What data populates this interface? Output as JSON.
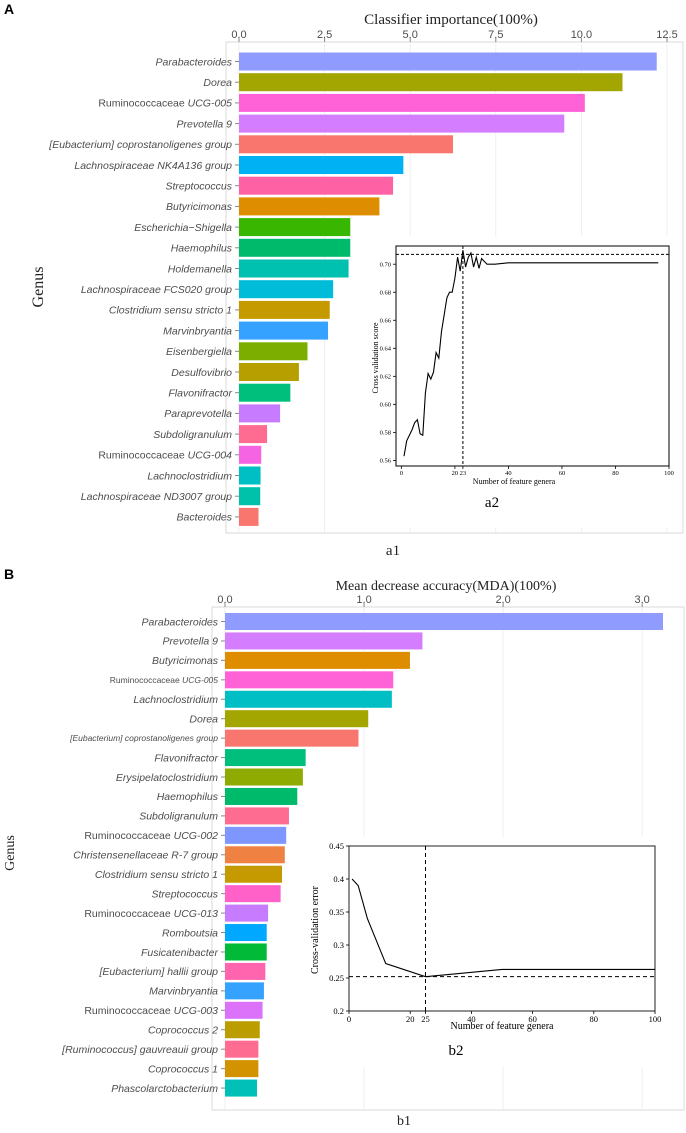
{
  "panels": [
    {
      "letter": "A",
      "caption": "a1",
      "chart_data": {
        "type": "bar",
        "orientation": "horizontal",
        "title": "Classifier importance(100%)",
        "xlabel": "Classifier importance(100%)",
        "ylabel": "Genus",
        "xlim": [
          0,
          12.5
        ],
        "xticks": [
          "0.0",
          "2.5",
          "5.0",
          "7.5",
          "10.0",
          "12.5"
        ],
        "xtick_values": [
          0,
          2.5,
          5,
          7.5,
          10,
          12.5
        ],
        "categories": [
          {
            "label": "Parabacteroides",
            "italic_all": true
          },
          {
            "label": "Dorea",
            "italic_all": true
          },
          {
            "label": "Ruminococcaceae UCG-005",
            "prefix": "Ruminococcaceae ",
            "suffix": "UCG-005"
          },
          {
            "label": "Prevotella 9",
            "italic_all": true
          },
          {
            "label": "[Eubacterium] coprostanoligenes group",
            "italic_all": true
          },
          {
            "label": "Lachnospiraceae NK4A136 group",
            "italic_all": true
          },
          {
            "label": "Streptococcus",
            "italic_all": true
          },
          {
            "label": "Butyricimonas",
            "italic_all": true
          },
          {
            "label": "Escherichia−Shigella",
            "italic_all": true
          },
          {
            "label": "Haemophilus",
            "italic_all": true
          },
          {
            "label": "Holdemanella",
            "italic_all": true
          },
          {
            "label": "Lachnospiraceae FCS020 group",
            "italic_all": true
          },
          {
            "label": "Clostridium sensu stricto 1",
            "italic_all": true
          },
          {
            "label": "Marvinbryantia",
            "italic_all": true
          },
          {
            "label": "Eisenbergiella",
            "italic_all": true
          },
          {
            "label": "Desulfovibrio",
            "italic_all": true
          },
          {
            "label": "Flavonifractor",
            "italic_all": true
          },
          {
            "label": "Paraprevotella",
            "italic_all": true
          },
          {
            "label": "Subdoligranulum",
            "italic_all": true
          },
          {
            "label": "Ruminococcaceae UCG-004",
            "prefix": "Ruminococcaceae ",
            "suffix": "UCG-004"
          },
          {
            "label": "Lachnoclostridium",
            "italic_all": true
          },
          {
            "label": "Lachnospiraceae ND3007 group",
            "italic_all": true
          },
          {
            "label": "Bacteroides",
            "italic_all": true
          }
        ],
        "values": [
          12.2,
          11.2,
          10.1,
          9.5,
          6.25,
          4.8,
          4.5,
          4.1,
          3.25,
          3.25,
          3.2,
          2.75,
          2.65,
          2.6,
          2.0,
          1.75,
          1.5,
          1.2,
          0.82,
          0.65,
          0.63,
          0.62,
          0.57
        ],
        "colors": [
          "#8F9BFF",
          "#A3A500",
          "#FF62D6",
          "#D47EFF",
          "#F8766D",
          "#00B2F3",
          "#FF61A5",
          "#DE8C00",
          "#39B600",
          "#00BA6C",
          "#00C0B0",
          "#00BCD8",
          "#C49A00",
          "#35A2FF",
          "#7CAE00",
          "#B79F00",
          "#00BF7D",
          "#C77CFF",
          "#FF6C91",
          "#F564E3",
          "#00BFC4",
          "#00C1AA",
          "#F8766D"
        ]
      },
      "inset": {
        "label": "a2",
        "chart_data": {
          "type": "line",
          "xlabel": "Number of feature genera",
          "ylabel": "Cross validation score",
          "xlim": [
            -2,
            100
          ],
          "ylim": [
            0.556,
            0.713
          ],
          "xticks": [
            "0",
            "20",
            "23",
            "40",
            "60",
            "80",
            "100"
          ],
          "xtick_values": [
            0,
            20,
            23,
            40,
            60,
            80,
            100
          ],
          "yticks": [
            "0.56",
            "0.58",
            "0.60",
            "0.62",
            "0.64",
            "0.66",
            "0.68",
            "0.70"
          ],
          "ytick_values": [
            0.56,
            0.58,
            0.6,
            0.62,
            0.64,
            0.66,
            0.68,
            0.7
          ],
          "hline": 0.707,
          "vline": 23,
          "x": [
            1,
            2,
            3,
            4,
            5,
            6,
            7,
            8,
            9,
            10,
            11,
            12,
            13,
            14,
            15,
            16,
            17,
            18,
            19,
            20,
            21,
            22,
            23,
            24,
            25,
            26,
            27,
            28,
            29,
            30,
            32,
            35,
            40,
            50,
            60,
            70,
            80,
            90,
            96
          ],
          "y": [
            0.563,
            0.574,
            0.578,
            0.582,
            0.587,
            0.589,
            0.579,
            0.578,
            0.608,
            0.622,
            0.618,
            0.623,
            0.637,
            0.633,
            0.652,
            0.664,
            0.676,
            0.68,
            0.68,
            0.69,
            0.705,
            0.695,
            0.71,
            0.698,
            0.705,
            0.708,
            0.698,
            0.705,
            0.697,
            0.704,
            0.7,
            0.7,
            0.701,
            0.701,
            0.701,
            0.701,
            0.701,
            0.701,
            0.701
          ]
        }
      }
    },
    {
      "letter": "B",
      "caption": "b1",
      "chart_data": {
        "type": "bar",
        "orientation": "horizontal",
        "title": "Mean decrease accuracy(MDA)(100%)",
        "xlabel": "Mean decrease accuracy(MDA)(100%)",
        "ylabel": "Genus",
        "xlim": [
          0,
          3.15
        ],
        "xticks": [
          "0.0",
          "1.0",
          "2.0",
          "3.0"
        ],
        "xtick_values": [
          0,
          1,
          2,
          3
        ],
        "categories": [
          {
            "label": "Parabacteroides",
            "italic_all": true
          },
          {
            "label": "Prevotella 9",
            "italic_all": true
          },
          {
            "label": "Butyricimonas",
            "italic_all": true
          },
          {
            "label": "Ruminococcaceae UCG-005",
            "prefix": "Ruminococcaceae ",
            "suffix": "UCG-005",
            "small": true
          },
          {
            "label": "Lachnoclostridium",
            "italic_all": true
          },
          {
            "label": "Dorea",
            "italic_all": true
          },
          {
            "label": "[Eubacterium] coprostanoligenes group",
            "italic_all": true,
            "small": true
          },
          {
            "label": "Flavonifractor",
            "italic_all": true
          },
          {
            "label": "Erysipelatoclostridium",
            "italic_all": true
          },
          {
            "label": "Haemophilus",
            "italic_all": true
          },
          {
            "label": "Subdoligranulum",
            "italic_all": true
          },
          {
            "label": "Ruminococcaceae UCG-002",
            "prefix": "Ruminococcaceae ",
            "suffix": "UCG-002"
          },
          {
            "label": "Christensenellaceae R-7 group",
            "italic_all": true
          },
          {
            "label": "Clostridium sensu stricto 1",
            "italic_all": true
          },
          {
            "label": "Streptococcus",
            "italic_all": true
          },
          {
            "label": "Ruminococcaceae UCG-013",
            "prefix": "Ruminococcaceae ",
            "suffix": "UCG-013"
          },
          {
            "label": "Romboutsia",
            "italic_all": true
          },
          {
            "label": "Fusicatenibacter",
            "italic_all": true
          },
          {
            "label": "[Eubacterium] hallii group",
            "italic_all": true
          },
          {
            "label": "Marvinbryantia",
            "italic_all": true
          },
          {
            "label": "Ruminococcaceae UCG-003",
            "prefix": "Ruminococcaceae ",
            "suffix": "UCG-003"
          },
          {
            "label": "Coprococcus 2",
            "italic_all": true
          },
          {
            "label": "[Ruminococcus] gauvreauii group",
            "italic_all": true
          },
          {
            "label": "Coprococcus 1",
            "italic_all": true
          },
          {
            "label": "Phascolarctobacterium",
            "italic_all": true
          }
        ],
        "values": [
          3.15,
          1.42,
          1.33,
          1.21,
          1.2,
          1.03,
          0.96,
          0.58,
          0.56,
          0.52,
          0.46,
          0.44,
          0.43,
          0.41,
          0.4,
          0.31,
          0.3,
          0.3,
          0.29,
          0.28,
          0.27,
          0.25,
          0.24,
          0.24,
          0.23
        ],
        "colors": [
          "#8F9BFF",
          "#D47EFF",
          "#DE8C00",
          "#FF62D6",
          "#00BFC4",
          "#A3A500",
          "#F8766D",
          "#00BF7D",
          "#8FAA00",
          "#00BA6C",
          "#FF6C91",
          "#7F96FF",
          "#EF8142",
          "#C49A00",
          "#FF61C9",
          "#C77CFF",
          "#00A9FF",
          "#00BA38",
          "#FF65AE",
          "#35A2FF",
          "#DC71FA",
          "#BB9D00",
          "#FF6C91",
          "#D39200",
          "#00C0B8"
        ]
      },
      "inset": {
        "label": "b2",
        "chart_data": {
          "type": "line",
          "xlabel": "Number of feature genera",
          "ylabel": "Cross-validation error",
          "xlim": [
            0,
            100
          ],
          "ylim": [
            0.2,
            0.45
          ],
          "xticks": [
            "0",
            "20",
            "25",
            "40",
            "60",
            "80",
            "100"
          ],
          "xtick_values": [
            0,
            20,
            25,
            40,
            60,
            80,
            100
          ],
          "yticks": [
            "0.2",
            "0.25",
            "0.3",
            "0.35",
            "0.4",
            "0.45"
          ],
          "ytick_values": [
            0.2,
            0.25,
            0.3,
            0.35,
            0.4,
            0.45
          ],
          "hline": 0.252,
          "vline": 25,
          "x": [
            1,
            3,
            6,
            12,
            25,
            50,
            100
          ],
          "y": [
            0.4,
            0.39,
            0.34,
            0.272,
            0.252,
            0.263,
            0.263
          ]
        }
      }
    }
  ]
}
